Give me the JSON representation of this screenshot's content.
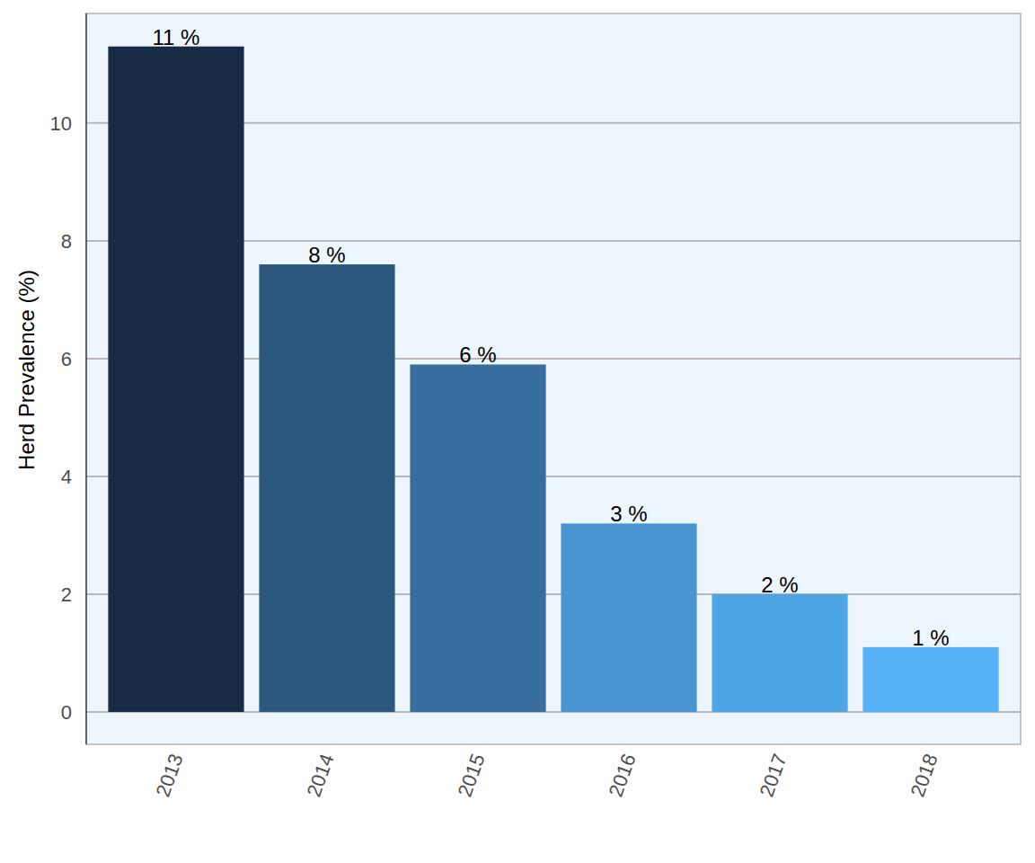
{
  "chart_data": {
    "type": "bar",
    "y_label": "Herd Prevalence (%)",
    "categories": [
      "2013",
      "2014",
      "2015",
      "2016",
      "2017",
      "2018"
    ],
    "values": [
      11.3,
      7.6,
      5.9,
      3.2,
      2.0,
      1.1
    ],
    "value_labels": [
      "11 %",
      "8 %",
      "6 %",
      "3 %",
      "2 %",
      "1 %"
    ],
    "colors": [
      "#172b44",
      "#2c5880",
      "#376e9e",
      "#4895d2",
      "#4ea5e6",
      "#56b1f7"
    ],
    "ylim": [
      -0.55,
      11.86
    ],
    "yticks": [
      0,
      2,
      4,
      6,
      8,
      10
    ],
    "grid": true,
    "data_labels": true
  }
}
